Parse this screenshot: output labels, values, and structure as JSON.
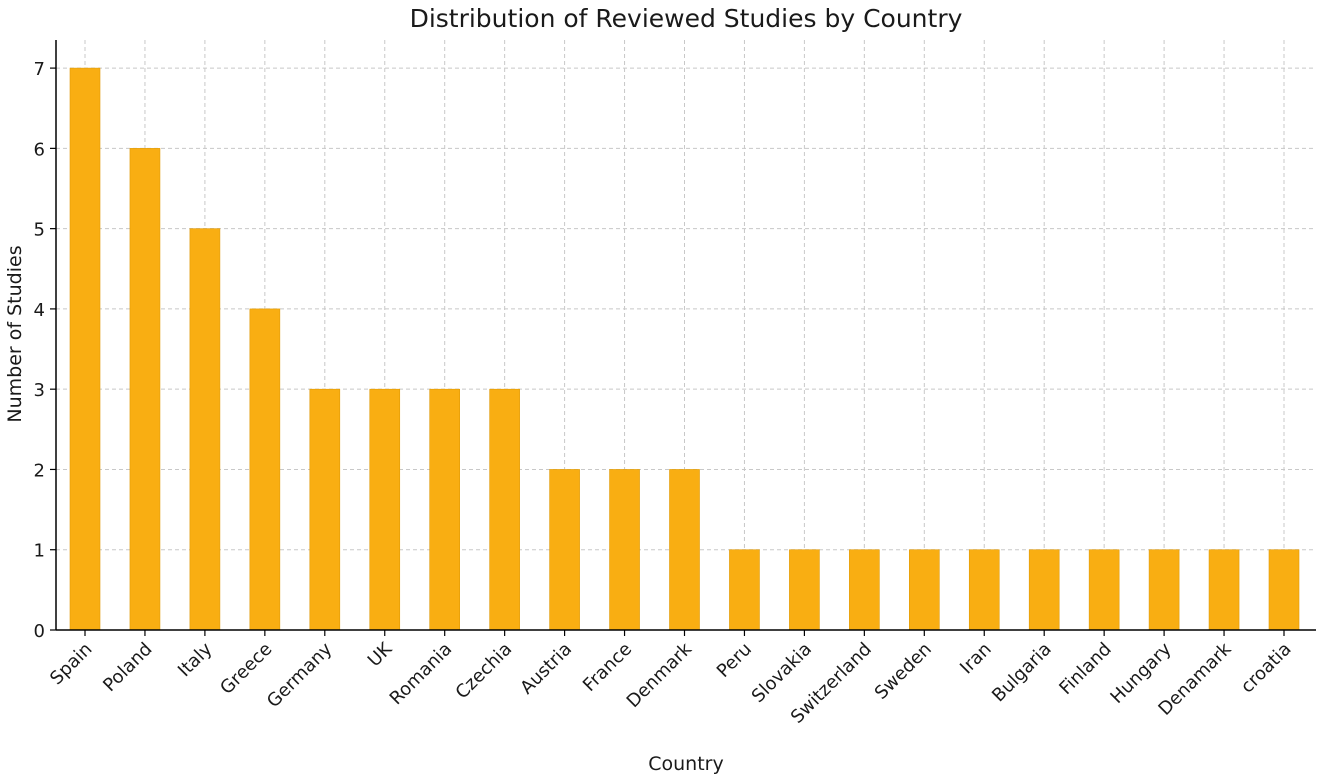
{
  "chart_data": {
    "type": "bar",
    "title": "Distribution of Reviewed Studies by Country",
    "xlabel": "Country",
    "ylabel": "Number of Studies",
    "categories": [
      "Spain",
      "Poland",
      "Italy",
      "Greece",
      "Germany",
      "UK",
      "Romania",
      "Czechia",
      "Austria",
      "France",
      "Denmark",
      "Peru",
      "Slovakia",
      "Switzerland",
      "Sweden",
      "Iran",
      "Bulgaria",
      "Finland",
      "Hungary",
      "Denamark",
      "croatia"
    ],
    "values": [
      7,
      6,
      5,
      4,
      3,
      3,
      3,
      3,
      2,
      2,
      2,
      1,
      1,
      1,
      1,
      1,
      1,
      1,
      1,
      1,
      1
    ],
    "ylim": [
      0,
      7.35
    ],
    "yticks": [
      0,
      1,
      2,
      3,
      4,
      5,
      6,
      7
    ],
    "grid": true,
    "legend": "none",
    "colors": {
      "bar": "#F9AE12",
      "bar_edge": "#E09A05",
      "grid": "#c8c8c8",
      "axis": "#000000"
    }
  }
}
